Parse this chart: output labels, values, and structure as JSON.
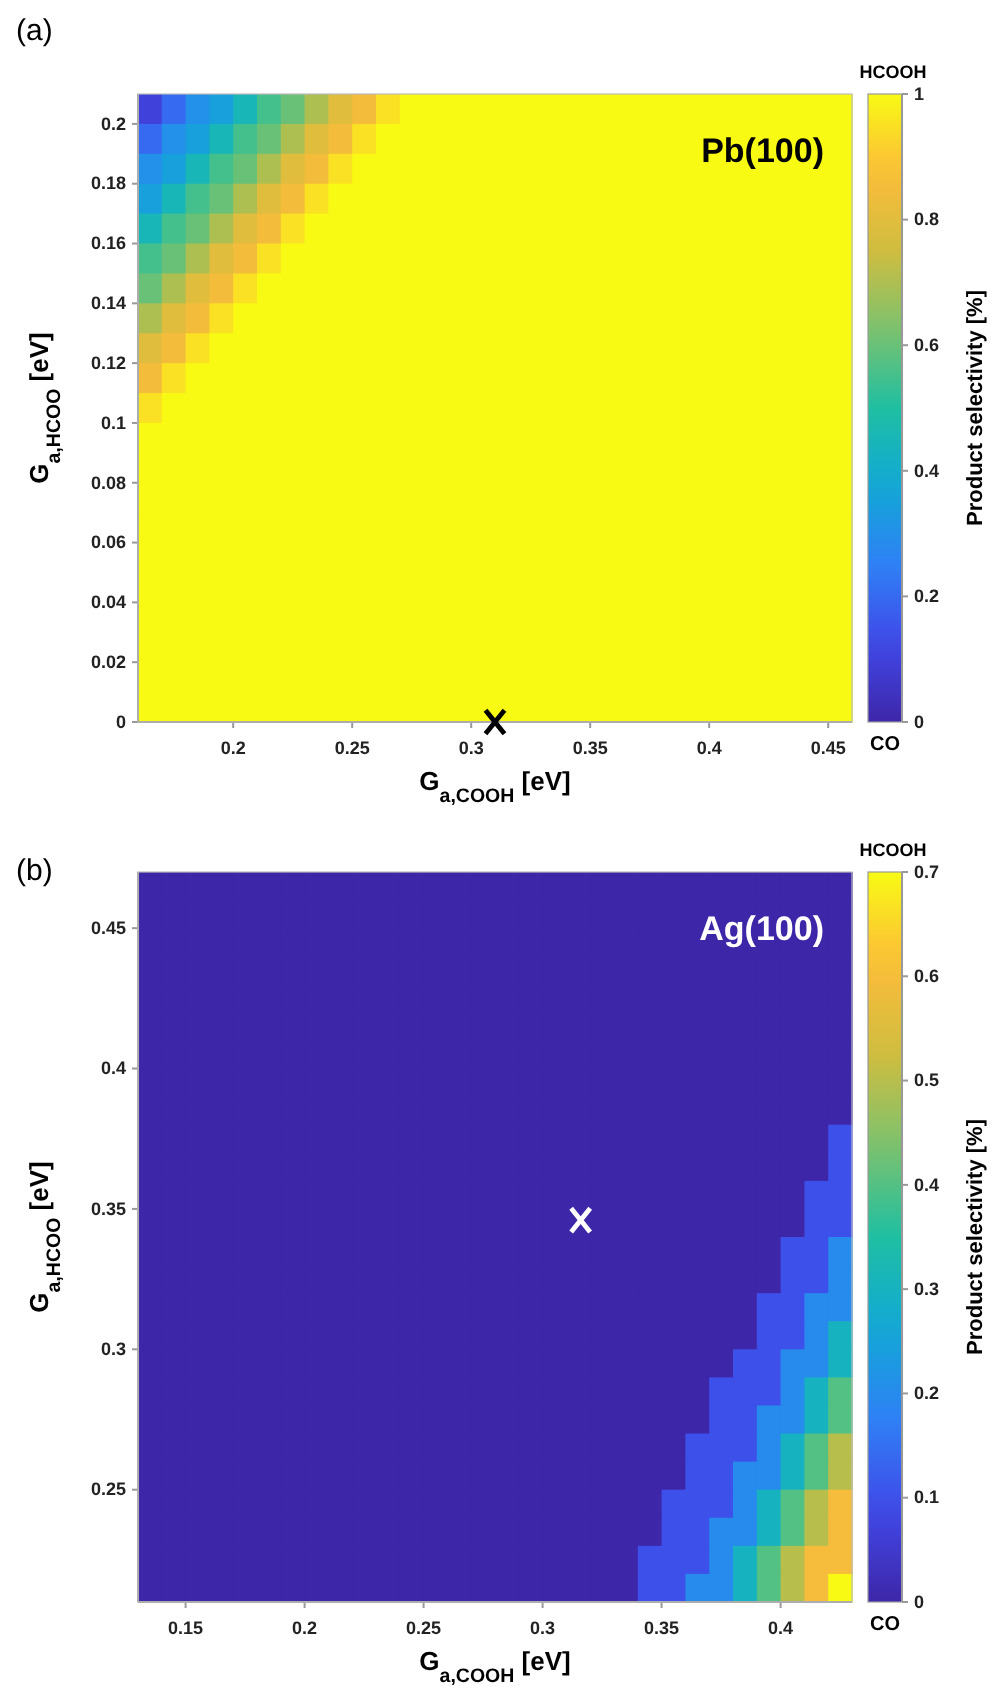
{
  "chart_data": [
    {
      "type": "heatmap",
      "title": "(a)",
      "xlabel": "G$_{a,COOH}$ [eV]",
      "ylabel": "G$_{a,HCOO}$ [eV]",
      "clabel": "Product selectivity [%]",
      "annotations": [
        "Pb(100)",
        "HCOOH",
        "CO"
      ],
      "marker": "cross",
      "series": [
        {
          "type": "scatter",
          "color": "#000000",
          "x": [
            0.31
          ],
          "values": [
            0
          ]
        }
      ],
      "xlim": [
        0.16,
        0.46
      ],
      "ylim": [
        0,
        0.21
      ],
      "xticks": [
        0.2,
        0.25,
        0.3,
        0.35,
        0.4,
        0.45
      ],
      "yticks": [
        0,
        0.02,
        0.04,
        0.06,
        0.08,
        0.1,
        0.12,
        0.14,
        0.16,
        0.18,
        0.2
      ],
      "clim": [
        0,
        1
      ],
      "cticks": [
        0,
        0.2,
        0.4,
        0.6,
        0.8,
        1
      ],
      "cells": [
        [
          0.1,
          0.2,
          0.3,
          0.35,
          0.45,
          0.55,
          0.6,
          0.7,
          0.8,
          0.85,
          0.95,
          1,
          1,
          1,
          1,
          1,
          1,
          1,
          1,
          1,
          1,
          1,
          1,
          1,
          1,
          1,
          1,
          1,
          1,
          1
        ],
        [
          0.2,
          0.3,
          0.35,
          0.45,
          0.55,
          0.6,
          0.7,
          0.8,
          0.85,
          0.95,
          1,
          1,
          1,
          1,
          1,
          1,
          1,
          1,
          1,
          1,
          1,
          1,
          1,
          1,
          1,
          1,
          1,
          1,
          1,
          1
        ],
        [
          0.3,
          0.35,
          0.45,
          0.55,
          0.6,
          0.7,
          0.8,
          0.85,
          0.95,
          1,
          1,
          1,
          1,
          1,
          1,
          1,
          1,
          1,
          1,
          1,
          1,
          1,
          1,
          1,
          1,
          1,
          1,
          1,
          1,
          1
        ],
        [
          0.35,
          0.45,
          0.55,
          0.6,
          0.7,
          0.8,
          0.85,
          0.95,
          1,
          1,
          1,
          1,
          1,
          1,
          1,
          1,
          1,
          1,
          1,
          1,
          1,
          1,
          1,
          1,
          1,
          1,
          1,
          1,
          1,
          1
        ],
        [
          0.45,
          0.55,
          0.6,
          0.7,
          0.8,
          0.85,
          0.95,
          1,
          1,
          1,
          1,
          1,
          1,
          1,
          1,
          1,
          1,
          1,
          1,
          1,
          1,
          1,
          1,
          1,
          1,
          1,
          1,
          1,
          1,
          1
        ],
        [
          0.55,
          0.6,
          0.7,
          0.8,
          0.85,
          0.95,
          1,
          1,
          1,
          1,
          1,
          1,
          1,
          1,
          1,
          1,
          1,
          1,
          1,
          1,
          1,
          1,
          1,
          1,
          1,
          1,
          1,
          1,
          1,
          1
        ],
        [
          0.6,
          0.7,
          0.8,
          0.85,
          0.95,
          1,
          1,
          1,
          1,
          1,
          1,
          1,
          1,
          1,
          1,
          1,
          1,
          1,
          1,
          1,
          1,
          1,
          1,
          1,
          1,
          1,
          1,
          1,
          1,
          1
        ],
        [
          0.7,
          0.8,
          0.85,
          0.95,
          1,
          1,
          1,
          1,
          1,
          1,
          1,
          1,
          1,
          1,
          1,
          1,
          1,
          1,
          1,
          1,
          1,
          1,
          1,
          1,
          1,
          1,
          1,
          1,
          1,
          1
        ],
        [
          0.8,
          0.85,
          0.95,
          1,
          1,
          1,
          1,
          1,
          1,
          1,
          1,
          1,
          1,
          1,
          1,
          1,
          1,
          1,
          1,
          1,
          1,
          1,
          1,
          1,
          1,
          1,
          1,
          1,
          1,
          1
        ],
        [
          0.85,
          0.95,
          1,
          1,
          1,
          1,
          1,
          1,
          1,
          1,
          1,
          1,
          1,
          1,
          1,
          1,
          1,
          1,
          1,
          1,
          1,
          1,
          1,
          1,
          1,
          1,
          1,
          1,
          1,
          1
        ],
        [
          0.95,
          1,
          1,
          1,
          1,
          1,
          1,
          1,
          1,
          1,
          1,
          1,
          1,
          1,
          1,
          1,
          1,
          1,
          1,
          1,
          1,
          1,
          1,
          1,
          1,
          1,
          1,
          1,
          1,
          1
        ],
        [
          1,
          1,
          1,
          1,
          1,
          1,
          1,
          1,
          1,
          1,
          1,
          1,
          1,
          1,
          1,
          1,
          1,
          1,
          1,
          1,
          1,
          1,
          1,
          1,
          1,
          1,
          1,
          1,
          1,
          1
        ],
        [
          1,
          1,
          1,
          1,
          1,
          1,
          1,
          1,
          1,
          1,
          1,
          1,
          1,
          1,
          1,
          1,
          1,
          1,
          1,
          1,
          1,
          1,
          1,
          1,
          1,
          1,
          1,
          1,
          1,
          1
        ],
        [
          1,
          1,
          1,
          1,
          1,
          1,
          1,
          1,
          1,
          1,
          1,
          1,
          1,
          1,
          1,
          1,
          1,
          1,
          1,
          1,
          1,
          1,
          1,
          1,
          1,
          1,
          1,
          1,
          1,
          1
        ],
        [
          1,
          1,
          1,
          1,
          1,
          1,
          1,
          1,
          1,
          1,
          1,
          1,
          1,
          1,
          1,
          1,
          1,
          1,
          1,
          1,
          1,
          1,
          1,
          1,
          1,
          1,
          1,
          1,
          1,
          1
        ],
        [
          1,
          1,
          1,
          1,
          1,
          1,
          1,
          1,
          1,
          1,
          1,
          1,
          1,
          1,
          1,
          1,
          1,
          1,
          1,
          1,
          1,
          1,
          1,
          1,
          1,
          1,
          1,
          1,
          1,
          1
        ],
        [
          1,
          1,
          1,
          1,
          1,
          1,
          1,
          1,
          1,
          1,
          1,
          1,
          1,
          1,
          1,
          1,
          1,
          1,
          1,
          1,
          1,
          1,
          1,
          1,
          1,
          1,
          1,
          1,
          1,
          1
        ],
        [
          1,
          1,
          1,
          1,
          1,
          1,
          1,
          1,
          1,
          1,
          1,
          1,
          1,
          1,
          1,
          1,
          1,
          1,
          1,
          1,
          1,
          1,
          1,
          1,
          1,
          1,
          1,
          1,
          1,
          1
        ],
        [
          1,
          1,
          1,
          1,
          1,
          1,
          1,
          1,
          1,
          1,
          1,
          1,
          1,
          1,
          1,
          1,
          1,
          1,
          1,
          1,
          1,
          1,
          1,
          1,
          1,
          1,
          1,
          1,
          1,
          1
        ],
        [
          1,
          1,
          1,
          1,
          1,
          1,
          1,
          1,
          1,
          1,
          1,
          1,
          1,
          1,
          1,
          1,
          1,
          1,
          1,
          1,
          1,
          1,
          1,
          1,
          1,
          1,
          1,
          1,
          1,
          1
        ],
        [
          1,
          1,
          1,
          1,
          1,
          1,
          1,
          1,
          1,
          1,
          1,
          1,
          1,
          1,
          1,
          1,
          1,
          1,
          1,
          1,
          1,
          1,
          1,
          1,
          1,
          1,
          1,
          1,
          1,
          1
        ]
      ]
    },
    {
      "type": "heatmap",
      "title": "(b)",
      "xlabel": "G$_{a,COOH}$ [eV]",
      "ylabel": "G$_{a,HCOO}$ [eV]",
      "clabel": "Product selectivity [%]",
      "annotations": [
        "Ag(100)",
        "HCOOH",
        "CO"
      ],
      "marker": "cross",
      "series": [
        {
          "type": "scatter",
          "color": "#ffffff",
          "x": [
            0.316
          ],
          "values": [
            0.346
          ]
        }
      ],
      "xlim": [
        0.13,
        0.43
      ],
      "ylim": [
        0.21,
        0.47
      ],
      "xticks": [
        0.15,
        0.2,
        0.25,
        0.3,
        0.35,
        0.4
      ],
      "yticks": [
        0.25,
        0.3,
        0.35,
        0.4,
        0.45
      ],
      "clim": [
        0,
        0.7
      ],
      "cticks": [
        0,
        0.1,
        0.2,
        0.3,
        0.4,
        0.5,
        0.6,
        0.7
      ],
      "cells": [
        [
          0,
          0,
          0,
          0,
          0,
          0,
          0,
          0,
          0,
          0,
          0,
          0,
          0,
          0,
          0,
          0,
          0,
          0,
          0,
          0,
          0,
          0,
          0,
          0,
          0,
          0,
          0,
          0,
          0,
          0
        ],
        [
          0,
          0,
          0,
          0,
          0,
          0,
          0,
          0,
          0,
          0,
          0,
          0,
          0,
          0,
          0,
          0,
          0,
          0,
          0,
          0,
          0,
          0,
          0,
          0,
          0,
          0,
          0,
          0,
          0,
          0
        ],
        [
          0,
          0,
          0,
          0,
          0,
          0,
          0,
          0,
          0,
          0,
          0,
          0,
          0,
          0,
          0,
          0,
          0,
          0,
          0,
          0,
          0,
          0,
          0,
          0,
          0,
          0,
          0,
          0,
          0,
          0
        ],
        [
          0,
          0,
          0,
          0,
          0,
          0,
          0,
          0,
          0,
          0,
          0,
          0,
          0,
          0,
          0,
          0,
          0,
          0,
          0,
          0,
          0,
          0,
          0,
          0,
          0,
          0,
          0,
          0,
          0,
          0
        ],
        [
          0,
          0,
          0,
          0,
          0,
          0,
          0,
          0,
          0,
          0,
          0,
          0,
          0,
          0,
          0,
          0,
          0,
          0,
          0,
          0,
          0,
          0,
          0,
          0,
          0,
          0,
          0,
          0,
          0,
          0
        ],
        [
          0,
          0,
          0,
          0,
          0,
          0,
          0,
          0,
          0,
          0,
          0,
          0,
          0,
          0,
          0,
          0,
          0,
          0,
          0,
          0,
          0,
          0,
          0,
          0,
          0,
          0,
          0,
          0,
          0,
          0
        ],
        [
          0,
          0,
          0,
          0,
          0,
          0,
          0,
          0,
          0,
          0,
          0,
          0,
          0,
          0,
          0,
          0,
          0,
          0,
          0,
          0,
          0,
          0,
          0,
          0,
          0,
          0,
          0,
          0,
          0,
          0
        ],
        [
          0,
          0,
          0,
          0,
          0,
          0,
          0,
          0,
          0,
          0,
          0,
          0,
          0,
          0,
          0,
          0,
          0,
          0,
          0,
          0,
          0,
          0,
          0,
          0,
          0,
          0,
          0,
          0,
          0,
          0
        ],
        [
          0,
          0,
          0,
          0,
          0,
          0,
          0,
          0,
          0,
          0,
          0,
          0,
          0,
          0,
          0,
          0,
          0,
          0,
          0,
          0,
          0,
          0,
          0,
          0,
          0,
          0,
          0,
          0,
          0,
          0
        ],
        [
          0,
          0,
          0,
          0,
          0,
          0,
          0,
          0,
          0,
          0,
          0,
          0,
          0,
          0,
          0,
          0,
          0,
          0,
          0,
          0,
          0,
          0,
          0,
          0,
          0,
          0,
          0,
          0,
          0,
          0.1
        ],
        [
          0,
          0,
          0,
          0,
          0,
          0,
          0,
          0,
          0,
          0,
          0,
          0,
          0,
          0,
          0,
          0,
          0,
          0,
          0,
          0,
          0,
          0,
          0,
          0,
          0,
          0,
          0,
          0,
          0,
          0.1
        ],
        [
          0,
          0,
          0,
          0,
          0,
          0,
          0,
          0,
          0,
          0,
          0,
          0,
          0,
          0,
          0,
          0,
          0,
          0,
          0,
          0,
          0,
          0,
          0,
          0,
          0,
          0,
          0,
          0,
          0.1,
          0.1
        ],
        [
          0,
          0,
          0,
          0,
          0,
          0,
          0,
          0,
          0,
          0,
          0,
          0,
          0,
          0,
          0,
          0,
          0,
          0,
          0,
          0,
          0,
          0,
          0,
          0,
          0,
          0,
          0,
          0,
          0.1,
          0.1
        ],
        [
          0,
          0,
          0,
          0,
          0,
          0,
          0,
          0,
          0,
          0,
          0,
          0,
          0,
          0,
          0,
          0,
          0,
          0,
          0,
          0,
          0,
          0,
          0,
          0,
          0,
          0,
          0,
          0.1,
          0.1,
          0.2
        ],
        [
          0,
          0,
          0,
          0,
          0,
          0,
          0,
          0,
          0,
          0,
          0,
          0,
          0,
          0,
          0,
          0,
          0,
          0,
          0,
          0,
          0,
          0,
          0,
          0,
          0,
          0,
          0,
          0.1,
          0.1,
          0.2
        ],
        [
          0,
          0,
          0,
          0,
          0,
          0,
          0,
          0,
          0,
          0,
          0,
          0,
          0,
          0,
          0,
          0,
          0,
          0,
          0,
          0,
          0,
          0,
          0,
          0,
          0,
          0,
          0.1,
          0.1,
          0.2,
          0.2
        ],
        [
          0,
          0,
          0,
          0,
          0,
          0,
          0,
          0,
          0,
          0,
          0,
          0,
          0,
          0,
          0,
          0,
          0,
          0,
          0,
          0,
          0,
          0,
          0,
          0,
          0,
          0,
          0.1,
          0.1,
          0.2,
          0.3
        ],
        [
          0,
          0,
          0,
          0,
          0,
          0,
          0,
          0,
          0,
          0,
          0,
          0,
          0,
          0,
          0,
          0,
          0,
          0,
          0,
          0,
          0,
          0,
          0,
          0,
          0,
          0.1,
          0.1,
          0.2,
          0.2,
          0.3
        ],
        [
          0,
          0,
          0,
          0,
          0,
          0,
          0,
          0,
          0,
          0,
          0,
          0,
          0,
          0,
          0,
          0,
          0,
          0,
          0,
          0,
          0,
          0,
          0,
          0,
          0.1,
          0.1,
          0.1,
          0.2,
          0.3,
          0.4
        ],
        [
          0,
          0,
          0,
          0,
          0,
          0,
          0,
          0,
          0,
          0,
          0,
          0,
          0,
          0,
          0,
          0,
          0,
          0,
          0,
          0,
          0,
          0,
          0,
          0,
          0.1,
          0.1,
          0.2,
          0.2,
          0.3,
          0.4
        ],
        [
          0,
          0,
          0,
          0,
          0,
          0,
          0,
          0,
          0,
          0,
          0,
          0,
          0,
          0,
          0,
          0,
          0,
          0,
          0,
          0,
          0,
          0,
          0,
          0.1,
          0.1,
          0.1,
          0.2,
          0.3,
          0.4,
          0.5
        ],
        [
          0,
          0,
          0,
          0,
          0,
          0,
          0,
          0,
          0,
          0,
          0,
          0,
          0,
          0,
          0,
          0,
          0,
          0,
          0,
          0,
          0,
          0,
          0,
          0.1,
          0.1,
          0.2,
          0.2,
          0.3,
          0.4,
          0.5
        ],
        [
          0,
          0,
          0,
          0,
          0,
          0,
          0,
          0,
          0,
          0,
          0,
          0,
          0,
          0,
          0,
          0,
          0,
          0,
          0,
          0,
          0,
          0,
          0.1,
          0.1,
          0.1,
          0.2,
          0.3,
          0.4,
          0.5,
          0.6
        ],
        [
          0,
          0,
          0,
          0,
          0,
          0,
          0,
          0,
          0,
          0,
          0,
          0,
          0,
          0,
          0,
          0,
          0,
          0,
          0,
          0,
          0,
          0,
          0.1,
          0.1,
          0.2,
          0.2,
          0.3,
          0.4,
          0.5,
          0.6
        ],
        [
          0,
          0,
          0,
          0,
          0,
          0,
          0,
          0,
          0,
          0,
          0,
          0,
          0,
          0,
          0,
          0,
          0,
          0,
          0,
          0,
          0,
          0.1,
          0.1,
          0.1,
          0.2,
          0.3,
          0.4,
          0.5,
          0.6,
          0.6
        ],
        [
          0,
          0,
          0,
          0,
          0,
          0,
          0,
          0,
          0,
          0,
          0,
          0,
          0,
          0,
          0,
          0,
          0,
          0,
          0,
          0,
          0,
          0.1,
          0.1,
          0.2,
          0.2,
          0.3,
          0.4,
          0.5,
          0.6,
          0.7
        ]
      ]
    }
  ]
}
